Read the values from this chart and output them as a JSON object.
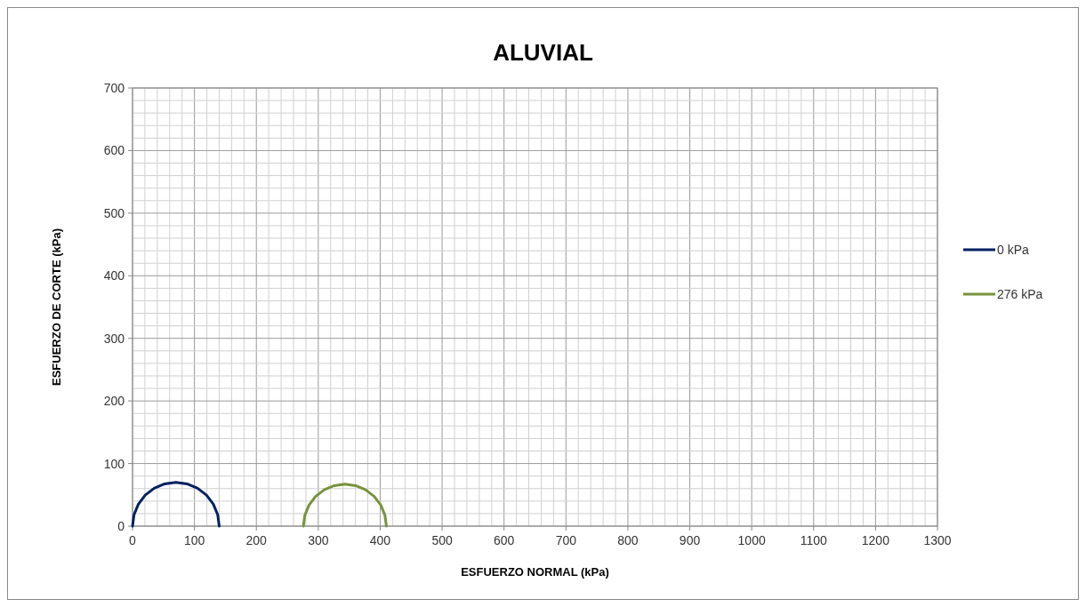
{
  "chart_data": {
    "type": "line",
    "title": "ALUVIAL",
    "xlabel": "ESFUERZO NORMAL (kPa)",
    "ylabel": "ESFUERZO DE CORTE (kPa)",
    "series": [
      {
        "name": "0 kPa",
        "color": "#002060",
        "x": [
          0,
          2.4,
          9.4,
          20.5,
          35,
          51.9,
          70,
          88.1,
          105,
          119.5,
          130.6,
          137.6,
          140
        ],
        "values": [
          0,
          18.1,
          35,
          49.5,
          60.6,
          67.6,
          70,
          67.6,
          60.6,
          49.5,
          35,
          18.1,
          0
        ]
      },
      {
        "name": "276 kPa",
        "color": "#77933c",
        "x": [
          276,
          278.3,
          285,
          295.6,
          309.5,
          325.7,
          343,
          360.3,
          376.5,
          390.4,
          401,
          407.7,
          410
        ],
        "values": [
          0,
          17.3,
          33.5,
          47.4,
          58,
          64.7,
          67,
          64.7,
          58,
          47.4,
          33.5,
          17.3,
          0
        ]
      }
    ],
    "xlim": [
      0,
      1300
    ],
    "xticks": [
      0,
      {
        "value": 20,
        "label": null
      },
      {
        "value": 40,
        "label": null
      },
      {
        "value": 60,
        "label": null
      },
      {
        "value": 80,
        "label": null
      },
      100,
      {
        "value": 120,
        "label": null
      },
      {
        "value": 140,
        "label": null
      },
      {
        "value": 160,
        "label": null
      },
      {
        "value": 180,
        "label": null
      },
      200,
      {
        "value": 220,
        "label": null
      },
      {
        "value": 240,
        "label": null
      },
      {
        "value": 260,
        "label": null
      },
      {
        "value": 280,
        "label": null
      },
      300,
      {
        "value": 320,
        "label": null
      },
      {
        "value": 340,
        "label": null
      },
      {
        "value": 360,
        "label": null
      },
      {
        "value": 380,
        "label": null
      },
      400,
      {
        "value": 420,
        "label": null
      },
      {
        "value": 440,
        "label": null
      },
      {
        "value": 460,
        "label": null
      },
      {
        "value": 480,
        "label": null
      },
      500,
      {
        "value": 520,
        "label": null
      },
      {
        "value": 540,
        "label": null
      },
      {
        "value": 560,
        "label": null
      },
      {
        "value": 580,
        "label": null
      },
      600,
      {
        "value": 620,
        "label": null
      },
      {
        "value": 640,
        "label": null
      },
      {
        "value": 660,
        "label": null
      },
      {
        "value": 680,
        "label": null
      },
      700,
      {
        "value": 720,
        "label": null
      },
      {
        "value": 740,
        "label": null
      },
      {
        "value": 760,
        "label": null
      },
      {
        "value": 780,
        "label": null
      },
      800,
      {
        "value": 820,
        "label": null
      },
      {
        "value": 840,
        "label": null
      },
      {
        "value": 860,
        "label": null
      },
      {
        "value": 880,
        "label": null
      },
      900,
      {
        "value": 920,
        "label": null
      },
      {
        "value": 940,
        "label": null
      },
      {
        "value": 960,
        "label": null
      },
      {
        "value": 980,
        "label": null
      },
      1000,
      {
        "value": 1020,
        "label": null
      },
      {
        "value": 1040,
        "label": null
      },
      {
        "value": 1060,
        "label": null
      },
      {
        "value": 1080,
        "label": null
      },
      1100,
      {
        "value": 1120,
        "label": null
      },
      {
        "value": 1140,
        "label": null
      },
      {
        "value": 1160,
        "label": null
      },
      {
        "value": 1180,
        "label": null
      },
      1200,
      {
        "value": 1220,
        "label": null
      },
      {
        "value": 1240,
        "label": null
      },
      {
        "value": 1260,
        "label": null
      },
      {
        "value": 1280,
        "label": null
      },
      1300
    ],
    "ylim": [
      0,
      700
    ],
    "yticks": [
      0,
      {
        "value": 20,
        "label": null
      },
      {
        "value": 40,
        "label": null
      },
      {
        "value": 60,
        "label": null
      },
      {
        "value": 80,
        "label": null
      },
      100,
      {
        "value": 120,
        "label": null
      },
      {
        "value": 140,
        "label": null
      },
      {
        "value": 160,
        "label": null
      },
      {
        "value": 180,
        "label": null
      },
      200,
      {
        "value": 220,
        "label": null
      },
      {
        "value": 240,
        "label": null
      },
      {
        "value": 260,
        "label": null
      },
      {
        "value": 280,
        "label": null
      },
      300,
      {
        "value": 320,
        "label": null
      },
      {
        "value": 340,
        "label": null
      },
      {
        "value": 360,
        "label": null
      },
      {
        "value": 380,
        "label": null
      },
      400,
      {
        "value": 420,
        "label": null
      },
      {
        "value": 440,
        "label": null
      },
      {
        "value": 460,
        "label": null
      },
      {
        "value": 480,
        "label": null
      },
      500,
      {
        "value": 520,
        "label": null
      },
      {
        "value": 540,
        "label": null
      },
      {
        "value": 560,
        "label": null
      },
      {
        "value": 580,
        "label": null
      },
      600,
      {
        "value": 620,
        "label": null
      },
      {
        "value": 640,
        "label": null
      },
      {
        "value": 660,
        "label": null
      },
      {
        "value": 680,
        "label": null
      },
      700
    ],
    "grid": true,
    "legend": "right",
    "marker": "none",
    "line_style": "solid"
  }
}
